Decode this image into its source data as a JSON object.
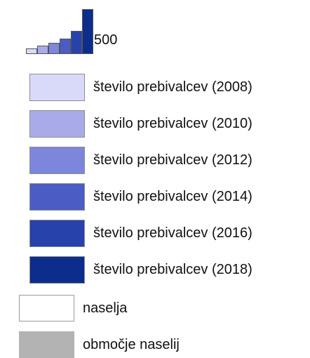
{
  "legend": {
    "scale_label": "500",
    "items": [
      {
        "label": "število prebivalcev (2008)",
        "color": "#d9d9f9"
      },
      {
        "label": "število prebivalcev (2010)",
        "color": "#a9abe9"
      },
      {
        "label": "število prebivalcev (2012)",
        "color": "#7c86da"
      },
      {
        "label": "število prebivalcev (2014)",
        "color": "#4b5dc5"
      },
      {
        "label": "število prebivalcev (2016)",
        "color": "#2742aa"
      },
      {
        "label": "število prebivalcev (2018)",
        "color": "#0d2d8d"
      }
    ],
    "areas": [
      {
        "label": "naselja",
        "color": "#ffffff"
      },
      {
        "label": "območje naselij",
        "color": "#b3b3b3"
      }
    ]
  }
}
